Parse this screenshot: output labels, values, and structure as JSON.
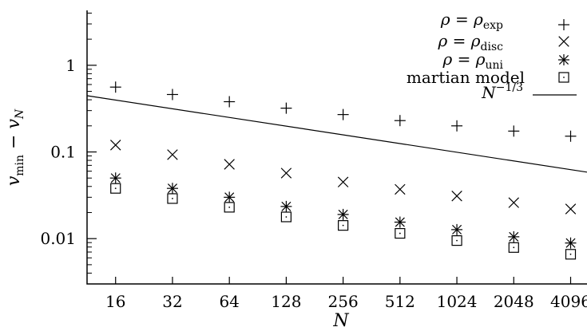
{
  "chart_data": {
    "type": "scatter",
    "xscale": "log2",
    "yscale": "log10",
    "x": [
      16,
      32,
      64,
      128,
      256,
      512,
      1024,
      2048,
      4096
    ],
    "xticks": [
      "16",
      "32",
      "64",
      "128",
      "256",
      "512",
      "1024",
      "2048",
      "4096"
    ],
    "yticks": [
      "1",
      "0.1",
      "0.01"
    ],
    "xlabel": "N",
    "ylabel": "v_min − v_N",
    "xlim": [
      11.3,
      5000
    ],
    "ylim": [
      0.003,
      4.3
    ],
    "legend_position": "top-right",
    "series": [
      {
        "name": "ρ = ρexp",
        "marker": "plus",
        "values": [
          0.56,
          0.46,
          0.38,
          0.32,
          0.27,
          0.23,
          0.2,
          0.174,
          0.152
        ]
      },
      {
        "name": "ρ = ρdisc",
        "marker": "cross",
        "values": [
          0.12,
          0.093,
          0.072,
          0.057,
          0.045,
          0.037,
          0.031,
          0.026,
          0.022
        ]
      },
      {
        "name": "ρ = ρuni",
        "marker": "star",
        "values": [
          0.05,
          0.038,
          0.03,
          0.0235,
          0.019,
          0.0155,
          0.0127,
          0.0105,
          0.0089
        ]
      },
      {
        "name": "martian model",
        "marker": "box",
        "values": [
          0.038,
          0.029,
          0.023,
          0.0178,
          0.0142,
          0.0115,
          0.0095,
          0.0079,
          0.0066
        ]
      }
    ],
    "reference_line": {
      "name": "N^-1/3",
      "formula": "N^(-1/3)"
    }
  }
}
